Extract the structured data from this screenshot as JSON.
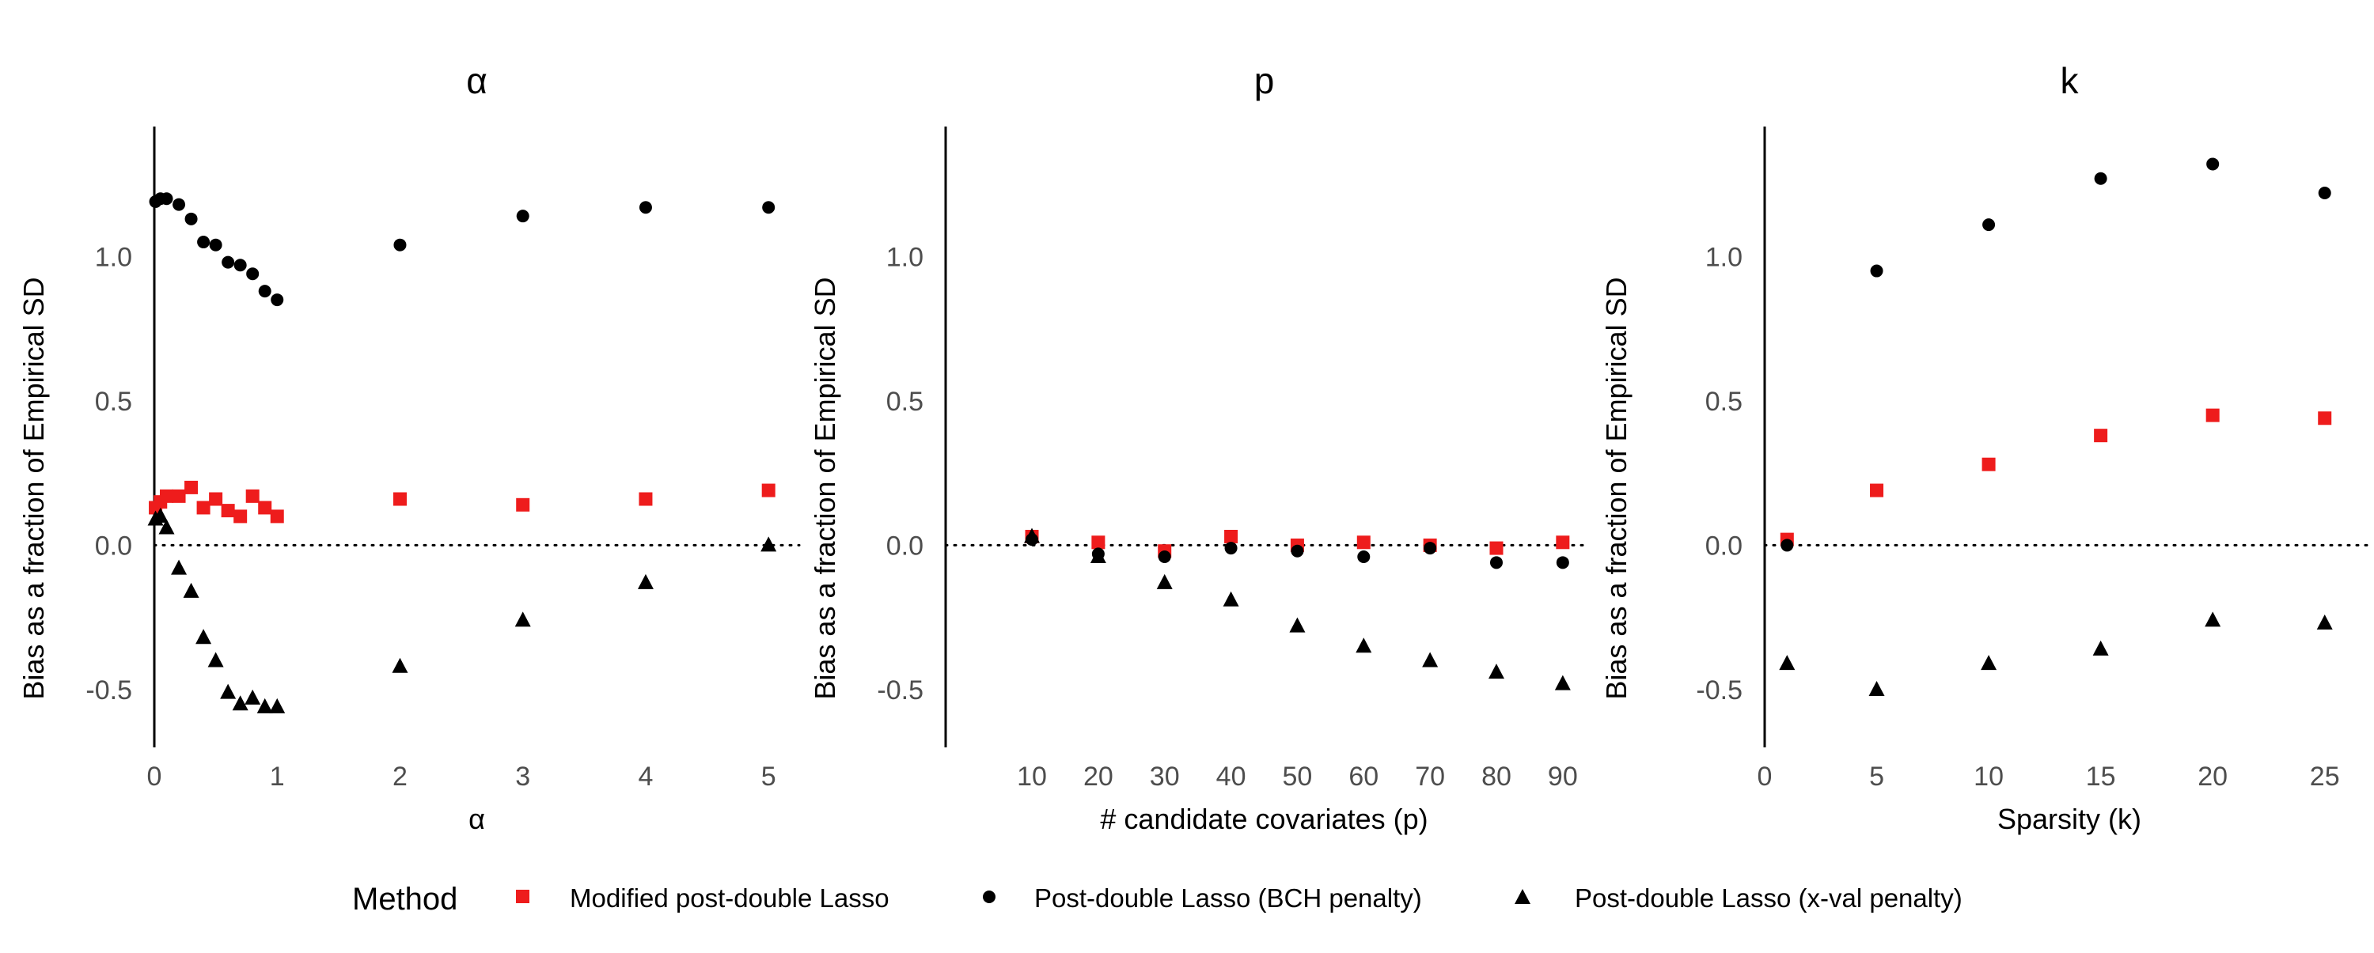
{
  "colors": {
    "modified": "#ee1c1c",
    "bch": "#000000",
    "xval": "#000000"
  },
  "chart_data": [
    {
      "type": "scatter",
      "title": "α",
      "xlabel": "α",
      "ylabel": "Bias as a fraction of Empirical SD",
      "xlim": [
        0,
        5.25
      ],
      "ylim": [
        -0.7,
        1.45
      ],
      "xticks": [
        0,
        1,
        2,
        3,
        4,
        5
      ],
      "yticks": [
        -0.5,
        0.0,
        0.5,
        1.0
      ],
      "ytick_labels": [
        "-0.5",
        "0.0",
        "0.5",
        "1.0"
      ],
      "series": [
        {
          "name": "Modified post-double Lasso",
          "marker": "square",
          "color": "#ee1c1c",
          "x": [
            0.01,
            0.05,
            0.1,
            0.2,
            0.3,
            0.4,
            0.5,
            0.6,
            0.7,
            0.8,
            0.9,
            1,
            2,
            3,
            4,
            5
          ],
          "y": [
            0.13,
            0.15,
            0.17,
            0.17,
            0.2,
            0.13,
            0.16,
            0.12,
            0.1,
            0.17,
            0.13,
            0.1,
            0.16,
            0.14,
            0.16,
            0.19
          ]
        },
        {
          "name": "Post-double Lasso (BCH penalty)",
          "marker": "circle",
          "color": "#000000",
          "x": [
            0.01,
            0.05,
            0.1,
            0.2,
            0.3,
            0.4,
            0.5,
            0.6,
            0.7,
            0.8,
            0.9,
            1,
            2,
            3,
            4,
            5
          ],
          "y": [
            1.19,
            1.2,
            1.2,
            1.18,
            1.13,
            1.05,
            1.04,
            0.98,
            0.97,
            0.94,
            0.88,
            0.85,
            1.04,
            1.14,
            1.17,
            1.17
          ]
        },
        {
          "name": "Post-double Lasso (x-val penalty)",
          "marker": "triangle",
          "color": "#000000",
          "x": [
            0.01,
            0.05,
            0.1,
            0.2,
            0.3,
            0.4,
            0.5,
            0.6,
            0.7,
            0.8,
            0.9,
            1,
            2,
            3,
            4,
            5
          ],
          "y": [
            0.09,
            0.1,
            0.06,
            -0.08,
            -0.16,
            -0.32,
            -0.4,
            -0.51,
            -0.55,
            -0.53,
            -0.56,
            -0.56,
            -0.42,
            -0.26,
            -0.13,
            0.0
          ]
        }
      ]
    },
    {
      "type": "scatter",
      "title": "p",
      "xlabel": "# candidate covariates (p)",
      "ylabel": "Bias as a fraction of Empirical SD",
      "xlim": [
        -3,
        93
      ],
      "ylim": [
        -0.7,
        1.45
      ],
      "xticks": [
        10,
        20,
        30,
        40,
        50,
        60,
        70,
        80,
        90
      ],
      "yticks": [
        -0.5,
        0.0,
        0.5,
        1.0
      ],
      "ytick_labels": [
        "-0.5",
        "0.0",
        "0.5",
        "1.0"
      ],
      "series": [
        {
          "name": "Modified post-double Lasso",
          "marker": "square",
          "color": "#ee1c1c",
          "x": [
            10,
            20,
            30,
            40,
            50,
            60,
            70,
            80,
            90
          ],
          "y": [
            0.03,
            0.01,
            -0.02,
            0.03,
            0.0,
            0.01,
            0.0,
            -0.01,
            0.01
          ]
        },
        {
          "name": "Post-double Lasso (BCH penalty)",
          "marker": "circle",
          "color": "#000000",
          "x": [
            10,
            20,
            30,
            40,
            50,
            60,
            70,
            80,
            90
          ],
          "y": [
            0.02,
            -0.03,
            -0.04,
            -0.01,
            -0.02,
            -0.04,
            -0.01,
            -0.06,
            -0.06
          ]
        },
        {
          "name": "Post-double Lasso (x-val penalty)",
          "marker": "triangle",
          "color": "#000000",
          "x": [
            10,
            20,
            30,
            40,
            50,
            60,
            70,
            80,
            90
          ],
          "y": [
            0.03,
            -0.04,
            -0.13,
            -0.19,
            -0.28,
            -0.35,
            -0.4,
            -0.44,
            -0.48
          ]
        }
      ]
    },
    {
      "type": "scatter",
      "title": "k",
      "xlabel": "Sparsity (k)",
      "ylabel": "Bias as a fraction of Empirical SD",
      "xlim": [
        0,
        27.2
      ],
      "ylim": [
        -0.7,
        1.45
      ],
      "xticks": [
        0,
        5,
        10,
        15,
        20,
        25
      ],
      "yticks": [
        -0.5,
        0.0,
        0.5,
        1.0
      ],
      "ytick_labels": [
        "-0.5",
        "0.0",
        "0.5",
        "1.0"
      ],
      "series": [
        {
          "name": "Modified post-double Lasso",
          "marker": "square",
          "color": "#ee1c1c",
          "x": [
            1,
            5,
            10,
            15,
            20,
            25
          ],
          "y": [
            0.02,
            0.19,
            0.28,
            0.38,
            0.45,
            0.44
          ]
        },
        {
          "name": "Post-double Lasso (BCH penalty)",
          "marker": "circle",
          "color": "#000000",
          "x": [
            1,
            5,
            10,
            15,
            20,
            25
          ],
          "y": [
            0.0,
            0.95,
            1.11,
            1.27,
            1.32,
            1.22
          ]
        },
        {
          "name": "Post-double Lasso (x-val penalty)",
          "marker": "triangle",
          "color": "#000000",
          "x": [
            1,
            5,
            10,
            15,
            20,
            25
          ],
          "y": [
            -0.41,
            -0.5,
            -0.41,
            -0.36,
            -0.26,
            -0.27
          ]
        }
      ]
    }
  ],
  "legend": {
    "title": "Method",
    "items": [
      {
        "label": "Modified post-double Lasso",
        "marker": "square",
        "color": "#ee1c1c"
      },
      {
        "label": "Post-double Lasso (BCH penalty)",
        "marker": "circle",
        "color": "#000000"
      },
      {
        "label": "Post-double Lasso (x-val penalty)",
        "marker": "triangle",
        "color": "#000000"
      }
    ]
  }
}
